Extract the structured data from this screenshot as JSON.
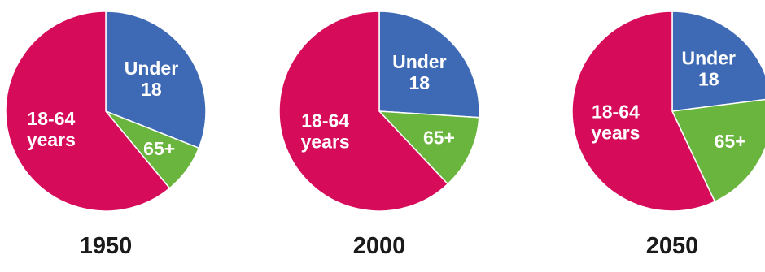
{
  "chart_data": [
    {
      "type": "pie",
      "title": "1950",
      "slices": [
        {
          "label_lines": [
            "Under",
            "18"
          ],
          "value": 31,
          "color": "#3e6ab5"
        },
        {
          "label_lines": [
            "65+"
          ],
          "value": 8,
          "color": "#6ab53e"
        },
        {
          "label_lines": [
            "18-64",
            "years"
          ],
          "value": 61,
          "color": "#d60c5b"
        }
      ]
    },
    {
      "type": "pie",
      "title": "2000",
      "slices": [
        {
          "label_lines": [
            "Under",
            "18"
          ],
          "value": 26,
          "color": "#3e6ab5"
        },
        {
          "label_lines": [
            "65+"
          ],
          "value": 12,
          "color": "#6ab53e"
        },
        {
          "label_lines": [
            "18-64",
            "years"
          ],
          "value": 62,
          "color": "#d60c5b"
        }
      ]
    },
    {
      "type": "pie",
      "title": "2050",
      "slices": [
        {
          "label_lines": [
            "Under",
            "18"
          ],
          "value": 23,
          "color": "#3e6ab5"
        },
        {
          "label_lines": [
            "65+"
          ],
          "value": 20,
          "color": "#6ab53e"
        },
        {
          "label_lines": [
            "18-64",
            "years"
          ],
          "value": 57,
          "color": "#d60c5b"
        }
      ]
    }
  ]
}
